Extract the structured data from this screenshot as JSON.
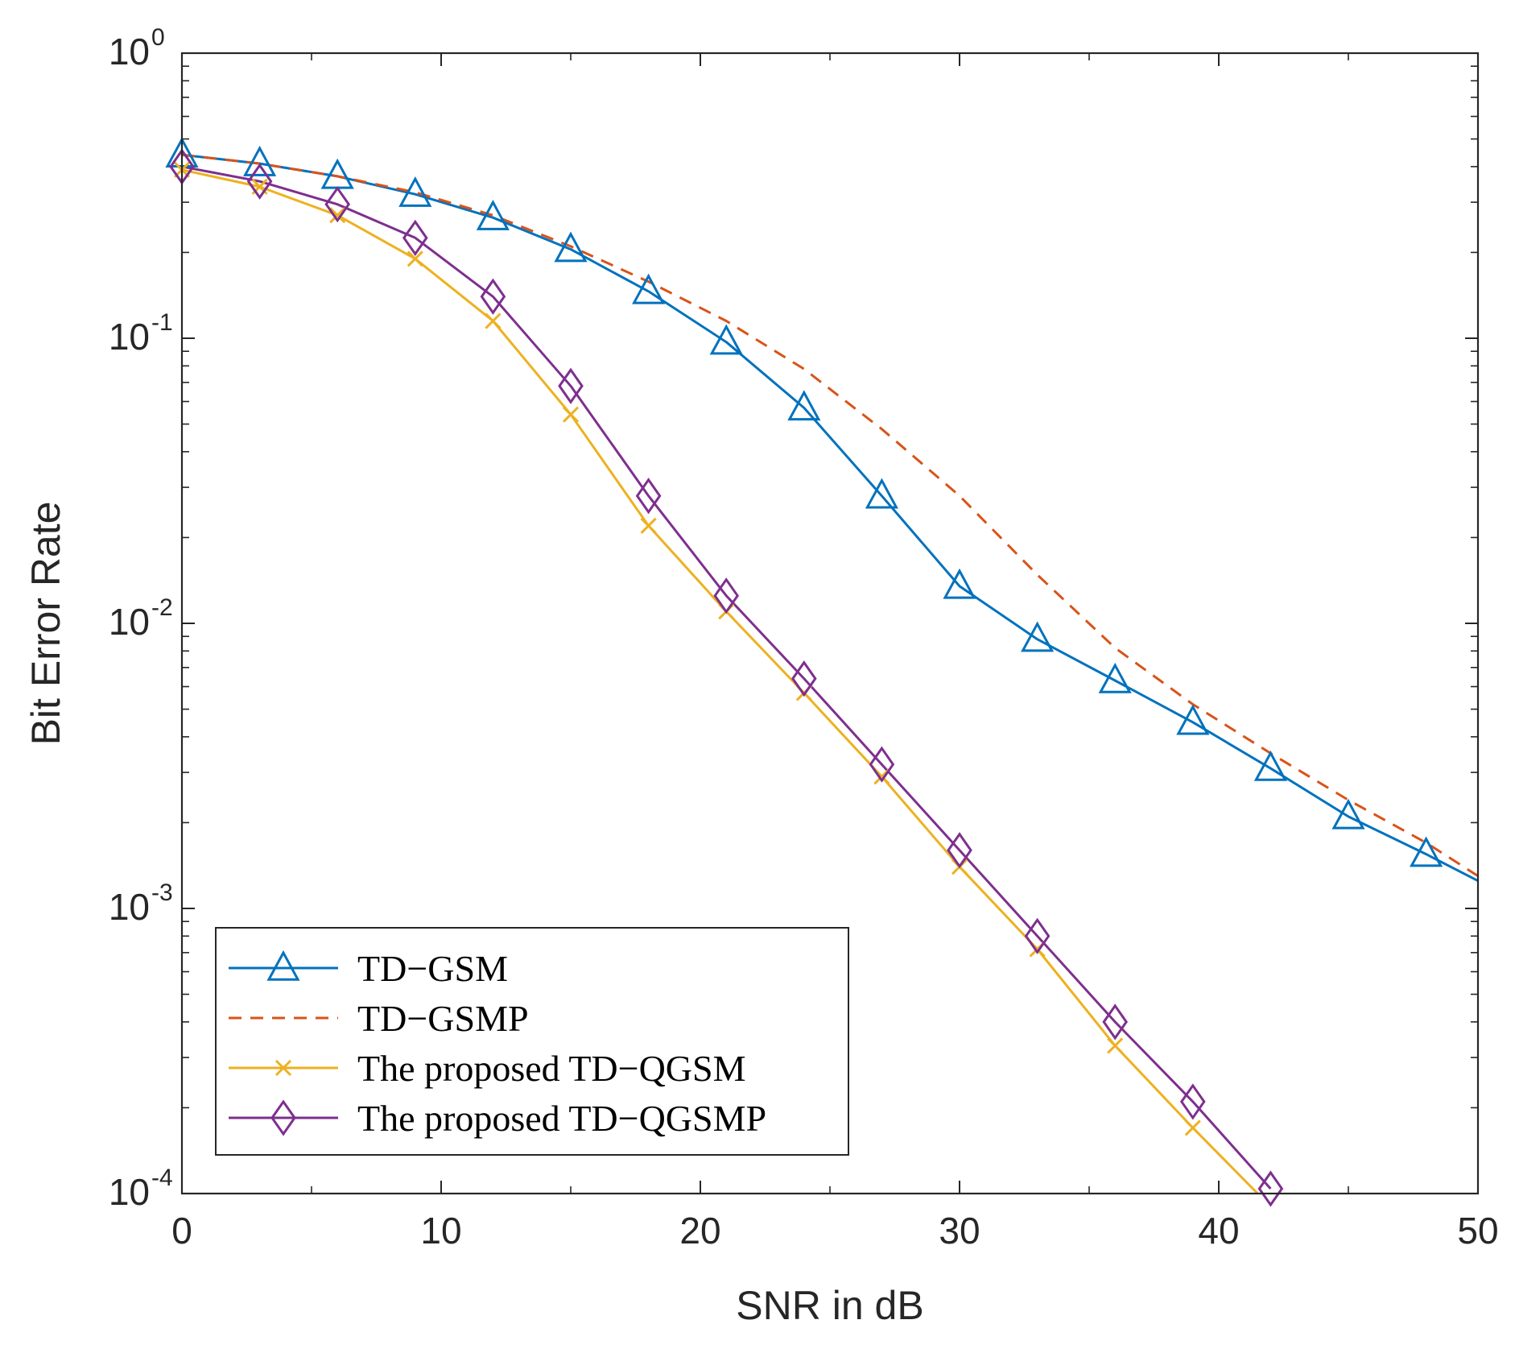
{
  "chart_data": {
    "type": "line",
    "xlabel": "SNR in dB",
    "ylabel": "Bit Error Rate",
    "xlim": [
      0,
      50
    ],
    "ylim": [
      0.0001,
      1
    ],
    "yscale": "log",
    "grid": false,
    "legend_position": "bottom-left",
    "x_ticks": [
      0,
      10,
      20,
      30,
      40,
      50
    ],
    "x_tick_labels": [
      "0",
      "10",
      "20",
      "30",
      "40",
      "50"
    ],
    "y_ticks": [
      1,
      0.1,
      0.01,
      0.001,
      0.0001
    ],
    "y_tick_labels": [
      {
        "base": "10",
        "exp": "0"
      },
      {
        "base": "10",
        "exp": "-1"
      },
      {
        "base": "10",
        "exp": "-2"
      },
      {
        "base": "10",
        "exp": "-3"
      },
      {
        "base": "10",
        "exp": "-4"
      }
    ],
    "series": [
      {
        "name": "TD−GSM",
        "color": "#0072BD",
        "dash": "solid",
        "marker": "triangle",
        "x": [
          0,
          3,
          6,
          9,
          12,
          15,
          18,
          21,
          24,
          27,
          30,
          33,
          36,
          39,
          42,
          45,
          48,
          50
        ],
        "y": [
          0.44,
          0.41,
          0.37,
          0.32,
          0.265,
          0.205,
          0.146,
          0.097,
          0.057,
          0.028,
          0.0135,
          0.0088,
          0.0063,
          0.0045,
          0.0031,
          0.0021,
          0.00155,
          0.00125
        ],
        "marker_count": 17
      },
      {
        "name": "TD−GSMP",
        "color": "#D95319",
        "dash": "dashed",
        "marker": "none",
        "x": [
          0,
          3,
          6,
          9,
          12,
          15,
          18,
          21,
          24,
          27,
          30,
          33,
          36,
          39,
          42,
          45,
          48,
          50
        ],
        "y": [
          0.44,
          0.41,
          0.37,
          0.325,
          0.27,
          0.21,
          0.158,
          0.115,
          0.078,
          0.048,
          0.028,
          0.0148,
          0.0082,
          0.0052,
          0.0035,
          0.0024,
          0.0017,
          0.0013
        ],
        "marker_count": 0
      },
      {
        "name": "The proposed TD−QGSM",
        "color": "#EDB120",
        "dash": "solid",
        "marker": "x",
        "x": [
          0,
          3,
          6,
          9,
          12,
          15,
          18,
          21,
          24,
          27,
          30,
          33,
          36,
          39,
          41.5
        ],
        "y": [
          0.39,
          0.34,
          0.27,
          0.19,
          0.115,
          0.054,
          0.022,
          0.011,
          0.0057,
          0.0029,
          0.0014,
          0.00072,
          0.00033,
          0.00017,
          0.0001
        ],
        "marker_count": 14
      },
      {
        "name": "The proposed TD−QGSMP",
        "color": "#7E2F8E",
        "dash": "solid",
        "marker": "diamond",
        "x": [
          0,
          3,
          6,
          9,
          12,
          15,
          18,
          21,
          24,
          27,
          30,
          33,
          36,
          39,
          42
        ],
        "y": [
          0.4,
          0.355,
          0.295,
          0.225,
          0.14,
          0.068,
          0.028,
          0.0125,
          0.0064,
          0.0032,
          0.0016,
          0.0008,
          0.0004,
          0.00021,
          0.000104
        ],
        "marker_count": 15
      }
    ]
  }
}
